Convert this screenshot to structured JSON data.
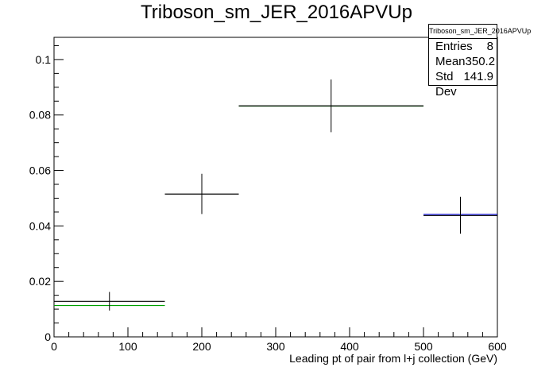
{
  "chart_data": {
    "type": "scatter",
    "title": "Triboson_sm_JER_2016APVUp",
    "xlabel": "Leading pt of pair from l+j collection (GeV)",
    "ylabel": "",
    "xlim": [
      0,
      600
    ],
    "ylim": [
      0,
      0.108
    ],
    "x_ticks": [
      0,
      100,
      200,
      300,
      400,
      500,
      600
    ],
    "y_ticks": [
      0,
      0.02,
      0.04,
      0.06,
      0.08,
      0.1
    ],
    "x_tick_labels": [
      "0",
      "100",
      "200",
      "300",
      "400",
      "500",
      "600"
    ],
    "y_tick_labels": [
      "0",
      "0.02",
      "0.04",
      "0.06",
      "0.08",
      "0.1"
    ],
    "grid": false,
    "series": [
      {
        "color": "#000000",
        "points": [
          {
            "x": 75,
            "xlow": 0,
            "xhigh": 150,
            "y": 0.0128,
            "ylow": 0.0095,
            "yhigh": 0.0162
          },
          {
            "x": 200,
            "xlow": 150,
            "xhigh": 250,
            "y": 0.0515,
            "ylow": 0.0443,
            "yhigh": 0.0588
          },
          {
            "x": 375,
            "xlow": 250,
            "xhigh": 500,
            "y": 0.0833,
            "ylow": 0.0738,
            "yhigh": 0.0928
          },
          {
            "x": 550,
            "xlow": 500,
            "xhigh": 600,
            "y": 0.0437,
            "ylow": 0.0372,
            "yhigh": 0.0505
          }
        ]
      },
      {
        "color": "#00a000",
        "points": [
          {
            "xlow": 0,
            "xhigh": 150,
            "y": 0.0113
          },
          {
            "xlow": 250,
            "xhigh": 500,
            "y": 0.0832
          }
        ]
      },
      {
        "color": "#0000cc",
        "points": [
          {
            "xlow": 500,
            "xhigh": 600,
            "y": 0.0442
          }
        ]
      }
    ],
    "stats_box": {
      "name": "Triboson_sm_JER_2016APVUp",
      "entries_label": "Entries",
      "entries": "8",
      "mean_label": "Mean",
      "mean": "350.2",
      "stddev_label": "Std Dev",
      "stddev": "141.9",
      "position": "top-right"
    }
  }
}
